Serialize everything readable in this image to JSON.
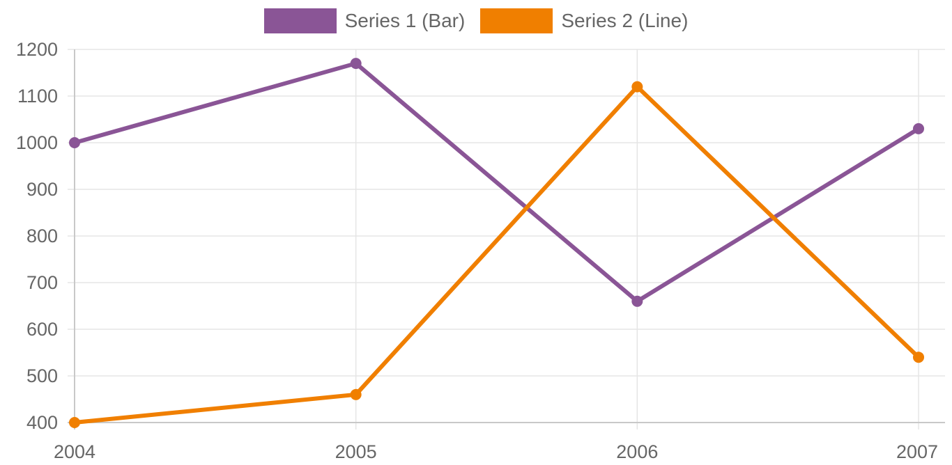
{
  "legend": {
    "items": [
      {
        "label": "Series 1 (Bar)",
        "color": "#8a5596"
      },
      {
        "label": "Series 2 (Line)",
        "color": "#f07f00"
      }
    ]
  },
  "chart_data": {
    "type": "line",
    "title": "",
    "xlabel": "",
    "ylabel": "",
    "categories": [
      "2004",
      "2005",
      "2006",
      "2007"
    ],
    "series": [
      {
        "name": "Series 1 (Bar)",
        "color": "#8a5596",
        "values": [
          1000,
          1170,
          660,
          1030
        ]
      },
      {
        "name": "Series 2 (Line)",
        "color": "#f07f00",
        "values": [
          400,
          460,
          1120,
          540
        ]
      }
    ],
    "ylim": [
      400,
      1200
    ],
    "yticks": [
      400,
      500,
      600,
      700,
      800,
      900,
      1000,
      1100,
      1200
    ],
    "grid": true,
    "legend_position": "top-center"
  },
  "colors": {
    "grid": "#e5e5e5",
    "axis": "#c8c8c8",
    "text": "#666666"
  }
}
